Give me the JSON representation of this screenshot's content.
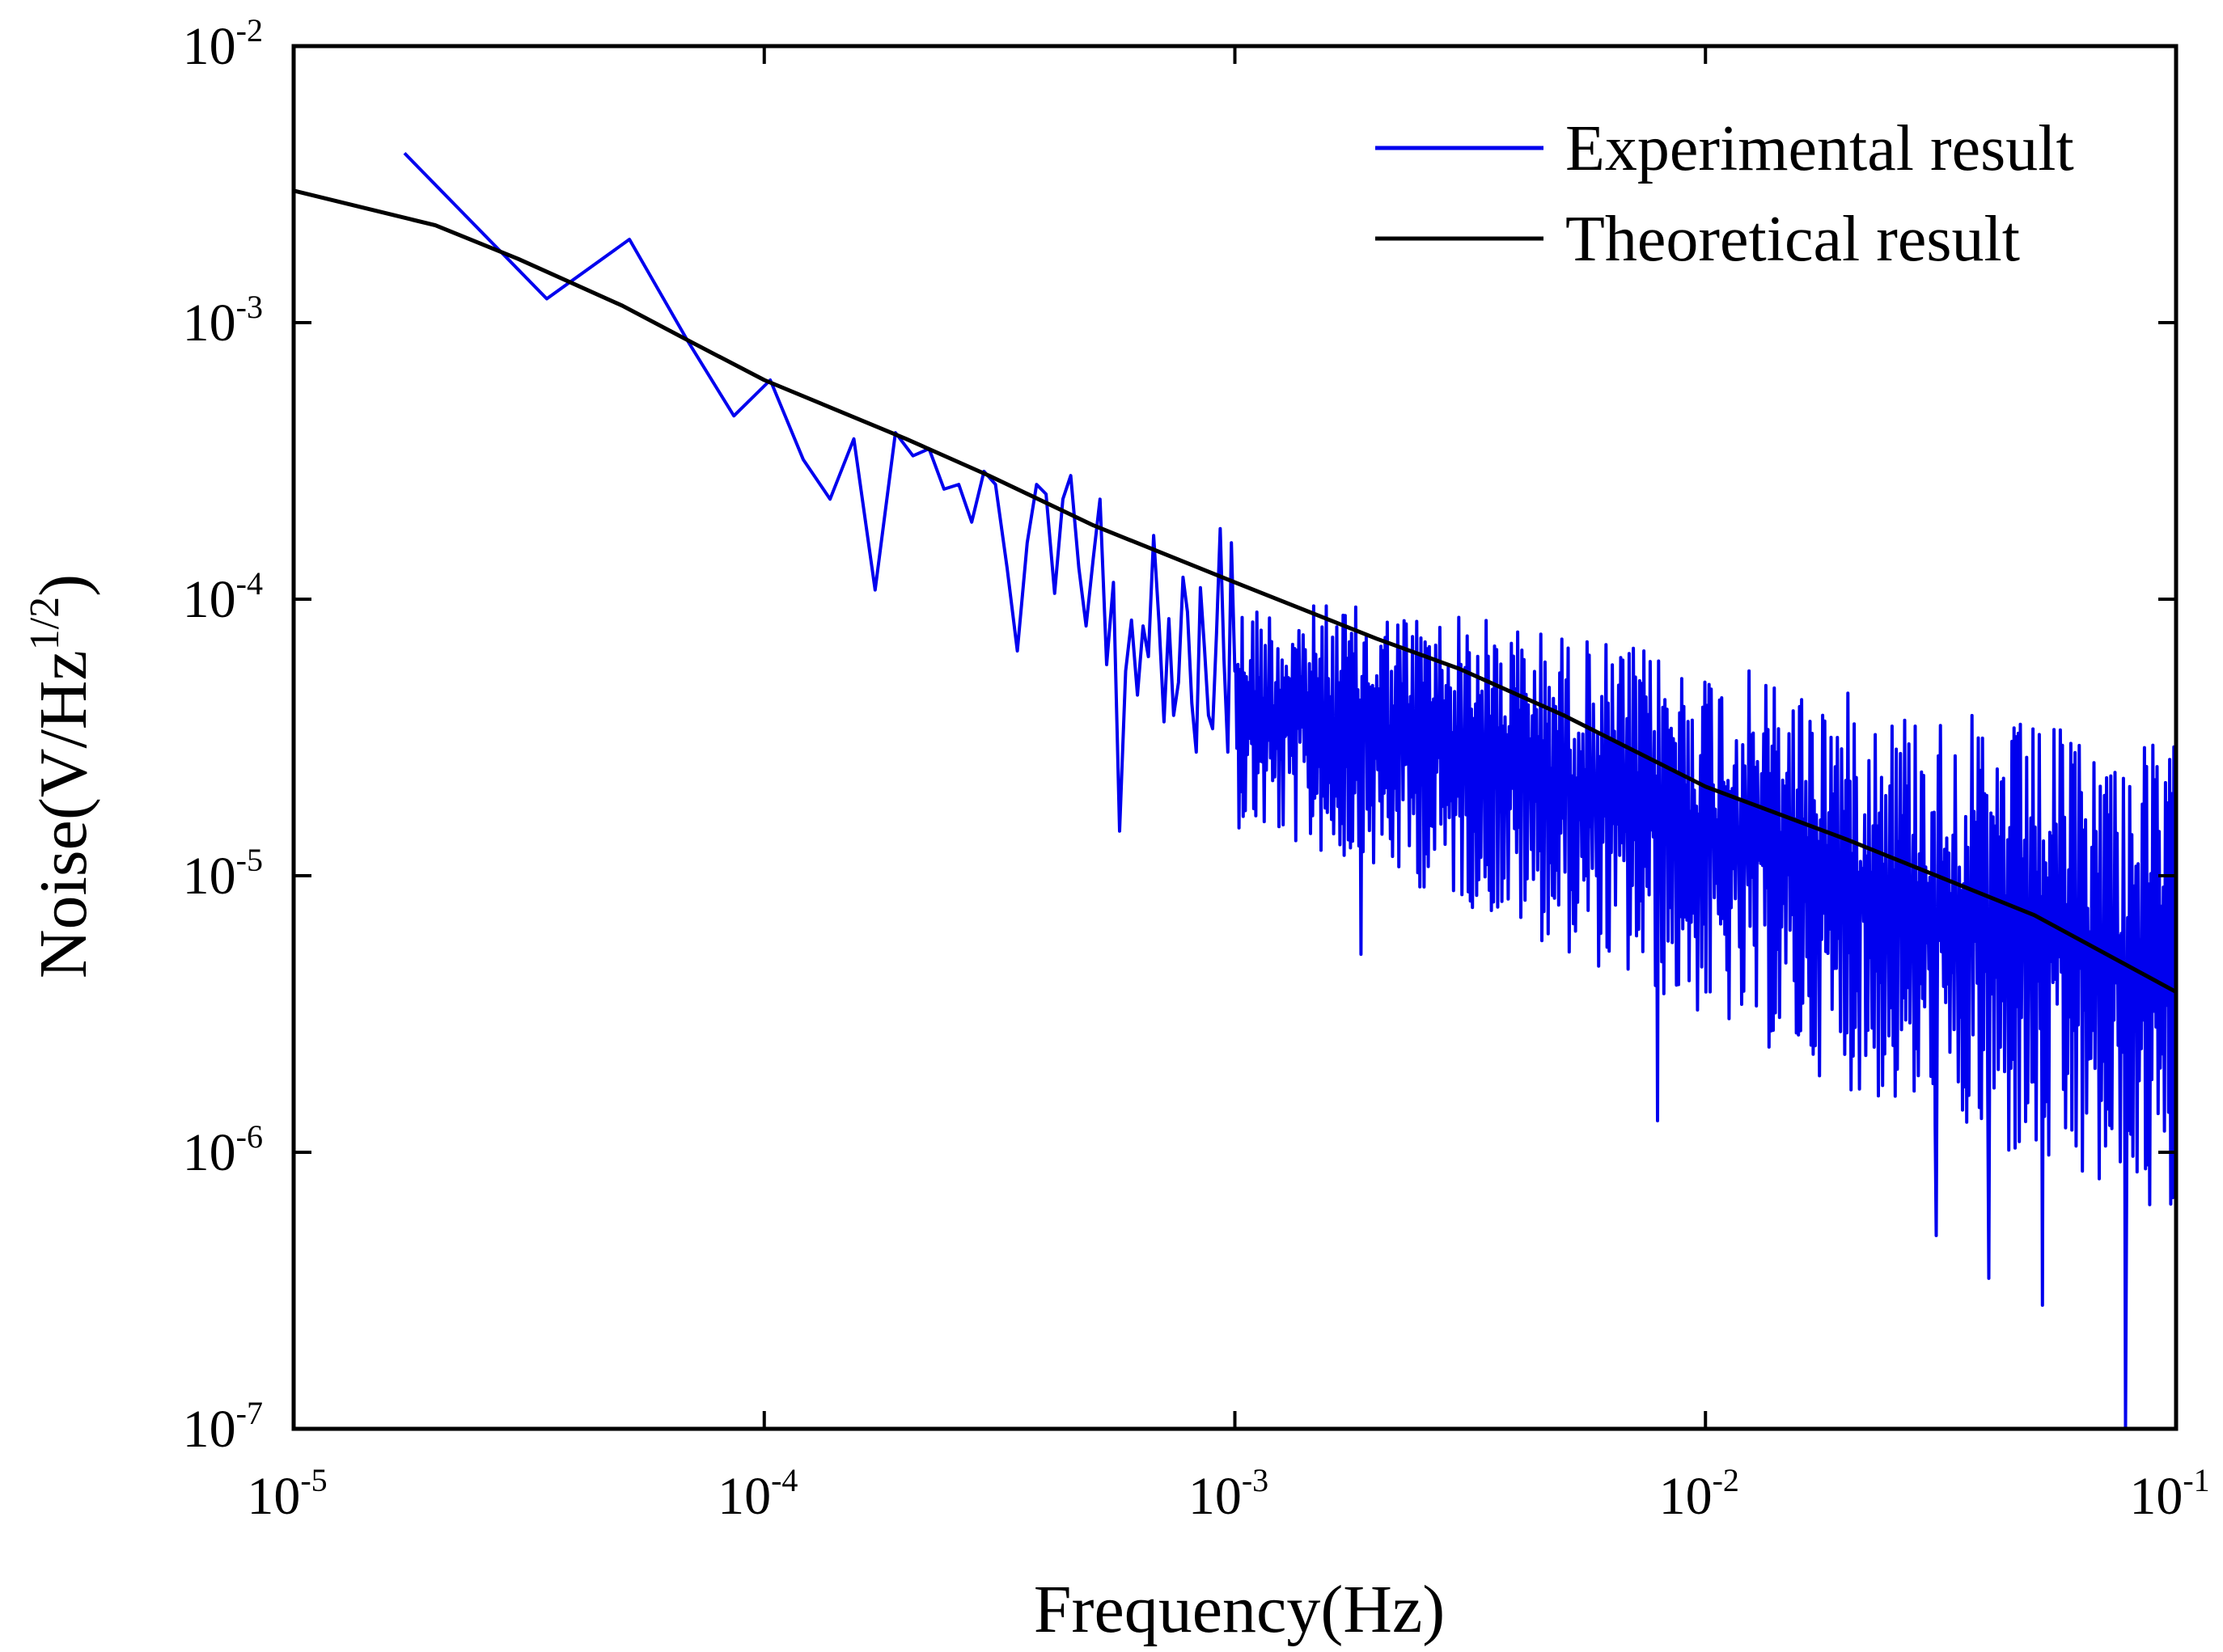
{
  "chart_data": {
    "type": "line",
    "title": "",
    "xlabel": "Frequency(Hz)",
    "ylabel": "Noise(V/Hz^1/2)",
    "ylabel_parts": {
      "main": "Noise(V/Hz",
      "sup": "1/2",
      "close": ")"
    },
    "x_scale": "log",
    "y_scale": "log",
    "xlim": [
      1e-05,
      0.1
    ],
    "ylim": [
      1e-07,
      0.01
    ],
    "x_ticks": [
      {
        "base": "10",
        "exp": "-5",
        "value": 1e-05
      },
      {
        "base": "10",
        "exp": "-4",
        "value": 0.0001
      },
      {
        "base": "10",
        "exp": "-3",
        "value": 0.001
      },
      {
        "base": "10",
        "exp": "-2",
        "value": 0.01
      },
      {
        "base": "10",
        "exp": "-1",
        "value": 0.1
      }
    ],
    "y_ticks": [
      {
        "base": "10",
        "exp": "-2",
        "value": 0.01
      },
      {
        "base": "10",
        "exp": "-3",
        "value": 0.001
      },
      {
        "base": "10",
        "exp": "-4",
        "value": 0.0001
      },
      {
        "base": "10",
        "exp": "-5",
        "value": 1e-05
      },
      {
        "base": "10",
        "exp": "-6",
        "value": 1e-06
      },
      {
        "base": "10",
        "exp": "-7",
        "value": 1e-07
      }
    ],
    "grid": false,
    "legend_position": "top-right",
    "series": [
      {
        "name": "Experimental result",
        "color": "#0000ee",
        "x": [
          1.72e-05,
          3.45e-05,
          5.17e-05,
          6.9e-05,
          8.62e-05,
          0.000103,
          0.000121,
          0.000138,
          0.000155,
          0.000172,
          0.00019,
          0.000207,
          0.000224,
          0.000241,
          0.000259,
          0.000276,
          0.000293,
          0.00031,
          0.000328,
          0.000345,
          0.000362,
          0.000379,
          0.000397,
          0.000414,
          0.000431,
          0.000448,
          0.000466,
          0.000483,
          0.0005,
          0.000517,
          0.000534,
          0.000552,
          0.000569,
          0.000586,
          0.000603,
          0.000621,
          0.000638,
          0.000655,
          0.000672,
          0.00069,
          0.000707,
          0.000724,
          0.000741,
          0.000759,
          0.000776,
          0.000793,
          0.00081,
          0.000828,
          0.000845,
          0.000862,
          0.000879,
          0.000897,
          0.000914,
          0.000931,
          0.000948,
          0.000966,
          0.000983,
          0.001
        ],
        "y": [
          0.0041,
          0.00122,
          0.002,
          0.00085,
          0.00046,
          0.00062,
          0.00032,
          0.00023,
          0.00038,
          0.000108,
          0.0004,
          0.00033,
          0.00035,
          0.00025,
          0.00026,
          0.00019,
          0.00029,
          0.00026,
          0.00013,
          6.5e-05,
          0.00016,
          0.00026,
          0.00024,
          0.000105,
          0.00023,
          0.00028,
          0.00013,
          8e-05,
          0.00014,
          0.00023,
          5.8e-05,
          0.000115,
          1.45e-05,
          5.5e-05,
          8.4e-05,
          4.5e-05,
          8e-05,
          6.2e-05,
          0.00017,
          8.2e-05,
          3.6e-05,
          8.5e-05,
          3.8e-05,
          5e-05,
          0.00012,
          9e-05,
          4.2e-05,
          2.8e-05,
          0.00011,
          6.6e-05,
          3.8e-05,
          3.4e-05,
          7.5e-05,
          0.00018,
          6.1e-05,
          2.8e-05,
          0.00016,
          5.5e-05
        ],
        "noise_region": {
          "x_range": [
            0.001,
            0.1
          ],
          "upper_envelope": [
            [
              0.001,
              0.0001
            ],
            [
              0.003,
              9e-05
            ],
            [
              0.01,
              6e-05
            ],
            [
              0.03,
              4e-05
            ],
            [
              0.1,
              3e-05
            ]
          ],
          "lower_envelope": [
            [
              0.001,
              1.5e-05
            ],
            [
              0.003,
              8e-06
            ],
            [
              0.01,
              3e-06
            ],
            [
              0.03,
              1.2e-06
            ],
            [
              0.1,
              5e-07
            ]
          ],
          "deep_dips": [
            [
              0.00185,
              5.2e-06
            ],
            [
              0.0079,
              1.3e-06
            ],
            [
              0.031,
              5e-07
            ],
            [
              0.04,
              3.5e-07
            ],
            [
              0.052,
              2.8e-07
            ],
            [
              0.078,
              1e-07
            ]
          ]
        }
      },
      {
        "name": "Theoretical result",
        "color": "#000000",
        "x": [
          1e-05,
          2e-05,
          3e-05,
          5e-05,
          7e-05,
          0.0001,
          0.0002,
          0.0003,
          0.0005,
          0.001,
          0.002,
          0.003,
          0.005,
          0.01,
          0.02,
          0.05,
          0.1
        ],
        "y": [
          0.003,
          0.00225,
          0.0017,
          0.00115,
          0.00085,
          0.00062,
          0.00038,
          0.00028,
          0.000185,
          0.000115,
          7.2e-05,
          5.6e-05,
          3.8e-05,
          2.1e-05,
          1.35e-05,
          7.2e-06,
          3.8e-06
        ]
      }
    ]
  }
}
